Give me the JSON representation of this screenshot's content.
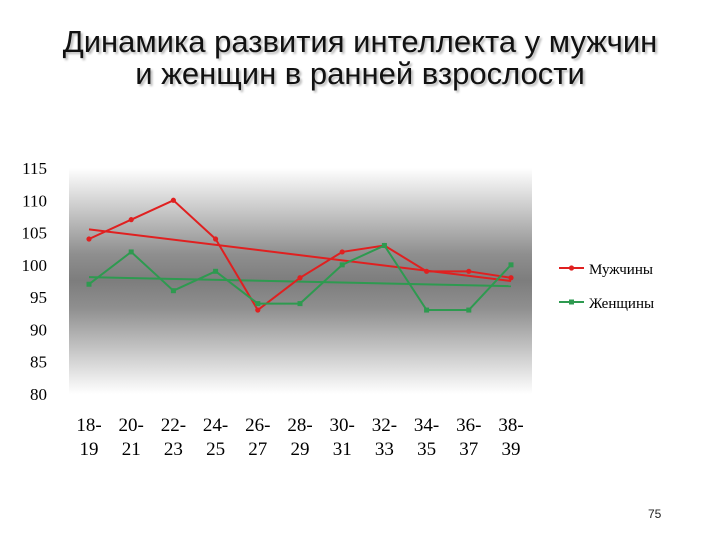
{
  "title": {
    "line1": "Динамика развития интеллекта у мужчин",
    "line2": "и женщин в ранней взрослости"
  },
  "page_number": "75",
  "chart_data": {
    "type": "line",
    "title": "Динамика развития интеллекта у мужчин и женщин в ранней взрослости",
    "categories": [
      [
        "18-",
        "19"
      ],
      [
        "20-",
        "21"
      ],
      [
        "22-",
        "23"
      ],
      [
        "24-",
        "25"
      ],
      [
        "26-",
        "27"
      ],
      [
        "28-",
        "29"
      ],
      [
        "30-",
        "31"
      ],
      [
        "32-",
        "33"
      ],
      [
        "34-",
        "35"
      ],
      [
        "36-",
        "37"
      ],
      [
        "38-",
        "39"
      ]
    ],
    "series": [
      {
        "name": "Мужчины",
        "color": "#e02020",
        "marker": "circle",
        "values": [
          104,
          107,
          110,
          104,
          93,
          98,
          102,
          103,
          99,
          99,
          98
        ],
        "trendline": [
          105.5,
          97.5
        ]
      },
      {
        "name": "Женщины",
        "color": "#2e9a50",
        "marker": "square",
        "values": [
          97,
          102,
          96,
          99,
          94,
          94,
          100,
          103,
          93,
          93,
          100
        ],
        "trendline": [
          98.1,
          96.7
        ]
      }
    ],
    "ylim": [
      80,
      115
    ],
    "yticks": [
      "115",
      "110",
      "105",
      "100",
      "95",
      "90",
      "85",
      "80"
    ],
    "ytick_values": [
      115,
      110,
      105,
      100,
      95,
      90,
      85,
      80
    ],
    "grid": false,
    "legend": "right",
    "trendlines": true,
    "plot_background": "gray-gradient"
  }
}
